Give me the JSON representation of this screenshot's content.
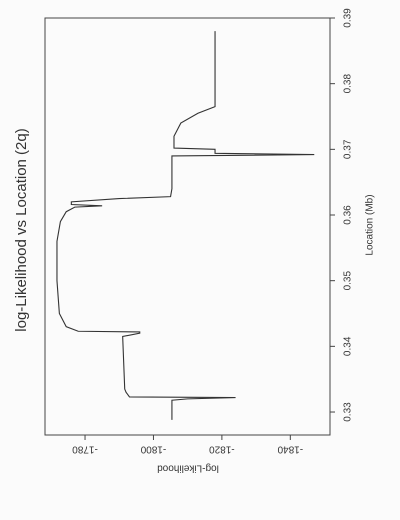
{
  "chart_data": {
    "type": "line",
    "title": "log-Likelihood vs Location (2q)",
    "xlabel": "Location (Mb)",
    "ylabel": "log-Likelihood",
    "x": [
      0.3288,
      0.3318,
      0.332,
      0.3322,
      0.3323,
      0.333,
      0.3335,
      0.3415,
      0.342,
      0.3422,
      0.3423,
      0.343,
      0.345,
      0.35,
      0.356,
      0.359,
      0.3605,
      0.3612,
      0.3614,
      0.3616,
      0.362,
      0.3625,
      0.3628,
      0.364,
      0.369,
      0.3692,
      0.3694,
      0.37,
      0.3702,
      0.372,
      0.374,
      0.3755,
      0.3765,
      0.388
    ],
    "values": [
      -1805.4,
      -1805.4,
      -1810,
      -1824,
      -1793,
      -1792,
      -1791.6,
      -1791,
      -1796,
      -1796,
      -1778,
      -1774.5,
      -1772.5,
      -1771.8,
      -1771.8,
      -1772.8,
      -1774.5,
      -1777,
      -1785,
      -1776,
      -1776,
      -1790,
      -1805,
      -1805.4,
      -1805.4,
      -1847,
      -1818,
      -1818,
      -1806,
      -1806,
      -1808,
      -1813,
      -1818,
      -1818
    ],
    "color": "#333333",
    "xlim": [
      0.3265,
      0.39
    ],
    "xticks": [
      0.33,
      0.34,
      0.35,
      0.36,
      0.37,
      0.38,
      0.39
    ],
    "ylim": [
      -1851.6,
      -1768.3
    ],
    "yticks": [
      -1780,
      -1800,
      -1820,
      -1840
    ]
  }
}
